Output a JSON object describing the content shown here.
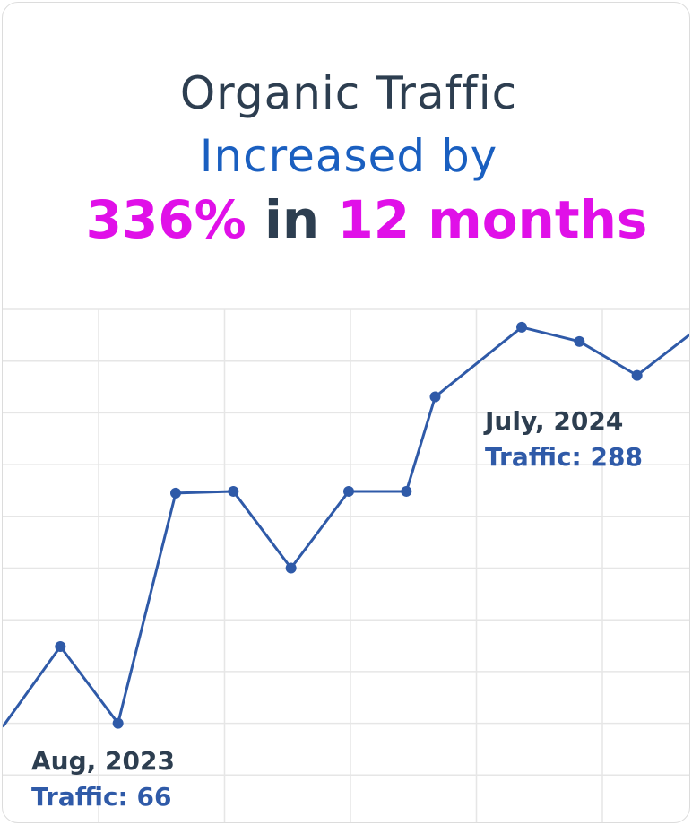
{
  "chart_data": {
    "type": "line",
    "title": {
      "line1": "Organic Traffic",
      "line2": "Increased by",
      "line3": [
        "336%",
        "in",
        "12 months"
      ]
    },
    "x": [
      0,
      1,
      2,
      3,
      4,
      5,
      6,
      7,
      7.5,
      9,
      10,
      11,
      12
    ],
    "xlim": [
      0,
      12
    ],
    "series": [
      {
        "color": "#2f5aa8",
        "values": [
          64,
          109,
          66,
          195,
          196,
          153,
          196,
          196,
          249,
          288,
          280,
          261,
          286
        ]
      }
    ],
    "ylim": [
      10,
      298
    ],
    "grid": true,
    "annotations": [
      {
        "date": "Aug, 2023",
        "traffic": "Traffic: 66"
      },
      {
        "date": "July, 2024",
        "traffic": "Traffic: 288"
      }
    ]
  }
}
